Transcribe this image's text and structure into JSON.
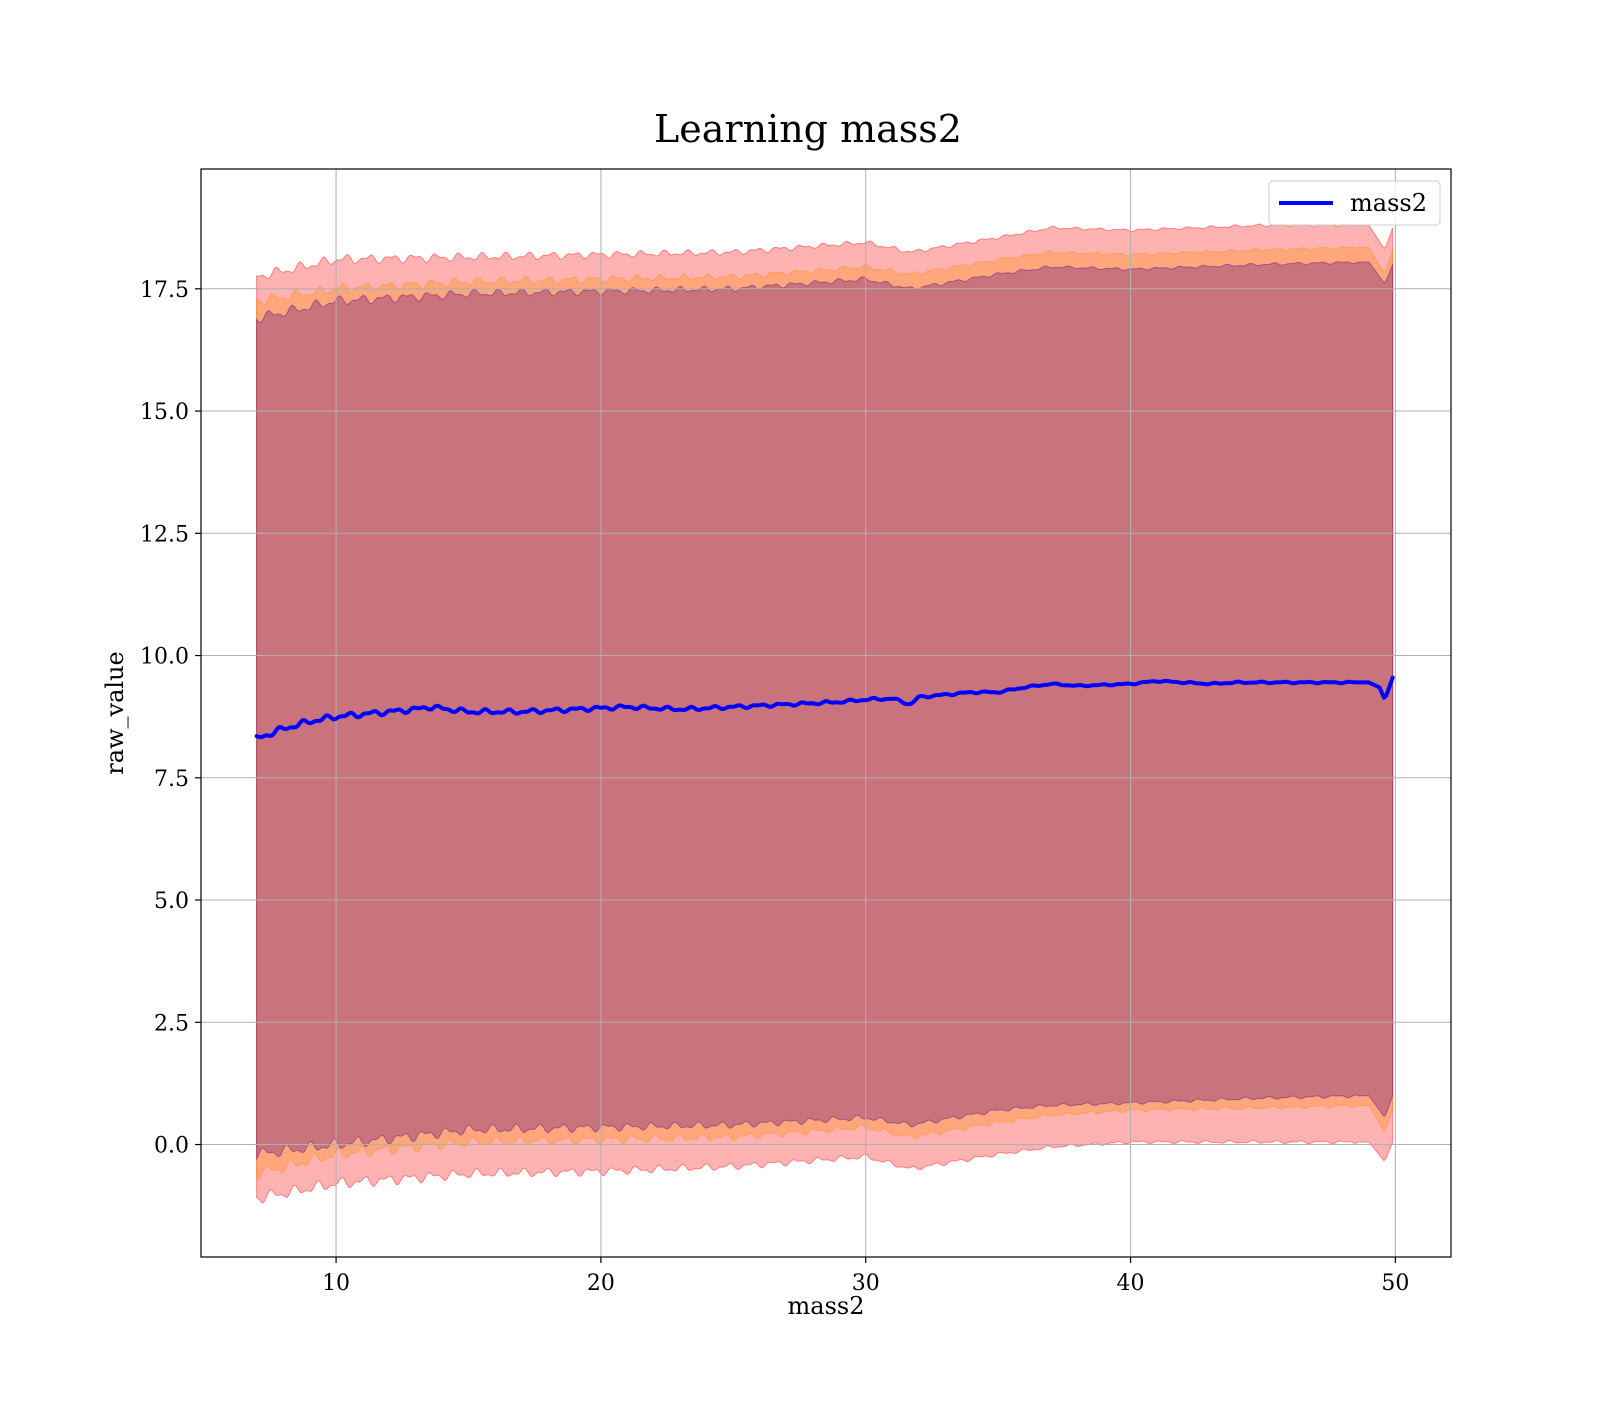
{
  "chart_data": {
    "type": "line",
    "title": "Learning mass2",
    "xlabel": "mass2",
    "ylabel": "raw_value",
    "xlim": [
      4.9,
      52.1
    ],
    "ylim": [
      -2.3,
      19.95
    ],
    "xticks": [
      10,
      20,
      30,
      40,
      50
    ],
    "xtick_labels": [
      "10",
      "20",
      "30",
      "40",
      "50"
    ],
    "yticks": [
      0.0,
      2.5,
      5.0,
      7.5,
      10.0,
      12.5,
      15.0,
      17.5
    ],
    "ytick_labels": [
      "0.0",
      "2.5",
      "5.0",
      "7.5",
      "10.0",
      "12.5",
      "15.0",
      "17.5"
    ],
    "grid": true,
    "legend": {
      "placement": "top-right",
      "entries": [
        "mass2"
      ]
    },
    "colors": {
      "line": "#0000ff",
      "band_outer": "#ff0000",
      "band_middle": "#ff8c00",
      "band_inner": "#4b0082"
    },
    "series": [
      {
        "name": "mass2",
        "kind": "line",
        "x": [
          7.0,
          7.5,
          8.0,
          9.0,
          10.0,
          11.0,
          12.0,
          13.0,
          13.5,
          15.0,
          17.0,
          19.0,
          21.0,
          23.0,
          25.0,
          27.0,
          29.0,
          30.0,
          31.0,
          31.7,
          32.0,
          33.0,
          34.0,
          35.0,
          36.0,
          37.0,
          38.0,
          39.0,
          40.0,
          41.0,
          42.0,
          43.0,
          44.0,
          46.0,
          48.0,
          49.0,
          49.4,
          49.6,
          49.9
        ],
        "y": [
          8.3,
          8.4,
          8.5,
          8.65,
          8.75,
          8.8,
          8.85,
          8.9,
          8.95,
          8.85,
          8.85,
          8.9,
          8.95,
          8.9,
          8.95,
          9.0,
          9.05,
          9.1,
          9.12,
          9.0,
          9.15,
          9.2,
          9.25,
          9.25,
          9.35,
          9.42,
          9.38,
          9.4,
          9.42,
          9.48,
          9.45,
          9.42,
          9.45,
          9.45,
          9.45,
          9.45,
          9.35,
          9.1,
          9.55
        ]
      },
      {
        "kind": "band",
        "level": "outer",
        "x": [
          7.0,
          10.0,
          15.0,
          20.0,
          25.0,
          30.0,
          31.7,
          35.0,
          37.0,
          40.0,
          45.0,
          49.0,
          49.6,
          49.9
        ],
        "lower": [
          -1.1,
          -0.8,
          -0.6,
          -0.55,
          -0.45,
          -0.25,
          -0.5,
          -0.2,
          -0.05,
          0.05,
          0.05,
          0.05,
          -0.35,
          0.05
        ],
        "upper": [
          17.75,
          18.1,
          18.15,
          18.2,
          18.25,
          18.45,
          18.25,
          18.55,
          18.75,
          18.7,
          18.8,
          18.8,
          18.3,
          18.75
        ]
      },
      {
        "kind": "band",
        "level": "middle",
        "x": [
          7.0,
          10.0,
          15.0,
          20.0,
          25.0,
          30.0,
          31.7,
          35.0,
          37.0,
          40.0,
          45.0,
          49.0,
          49.6,
          49.9
        ],
        "lower": [
          -0.6,
          -0.2,
          0.05,
          0.1,
          0.15,
          0.35,
          0.15,
          0.45,
          0.6,
          0.7,
          0.75,
          0.8,
          0.25,
          0.75
        ],
        "upper": [
          17.25,
          17.5,
          17.65,
          17.7,
          17.75,
          17.95,
          17.8,
          18.1,
          18.25,
          18.2,
          18.3,
          18.35,
          17.8,
          18.3
        ]
      },
      {
        "kind": "band",
        "level": "inner",
        "x": [
          7.0,
          10.0,
          15.0,
          20.0,
          25.0,
          30.0,
          31.7,
          35.0,
          37.0,
          40.0,
          45.0,
          49.0,
          49.6,
          49.9
        ],
        "lower": [
          -0.2,
          0.0,
          0.3,
          0.35,
          0.4,
          0.55,
          0.4,
          0.7,
          0.8,
          0.85,
          0.95,
          1.0,
          0.55,
          1.0
        ],
        "upper": [
          16.9,
          17.25,
          17.4,
          17.45,
          17.5,
          17.7,
          17.5,
          17.8,
          17.95,
          17.9,
          18.0,
          18.05,
          17.6,
          18.0
        ]
      }
    ]
  }
}
